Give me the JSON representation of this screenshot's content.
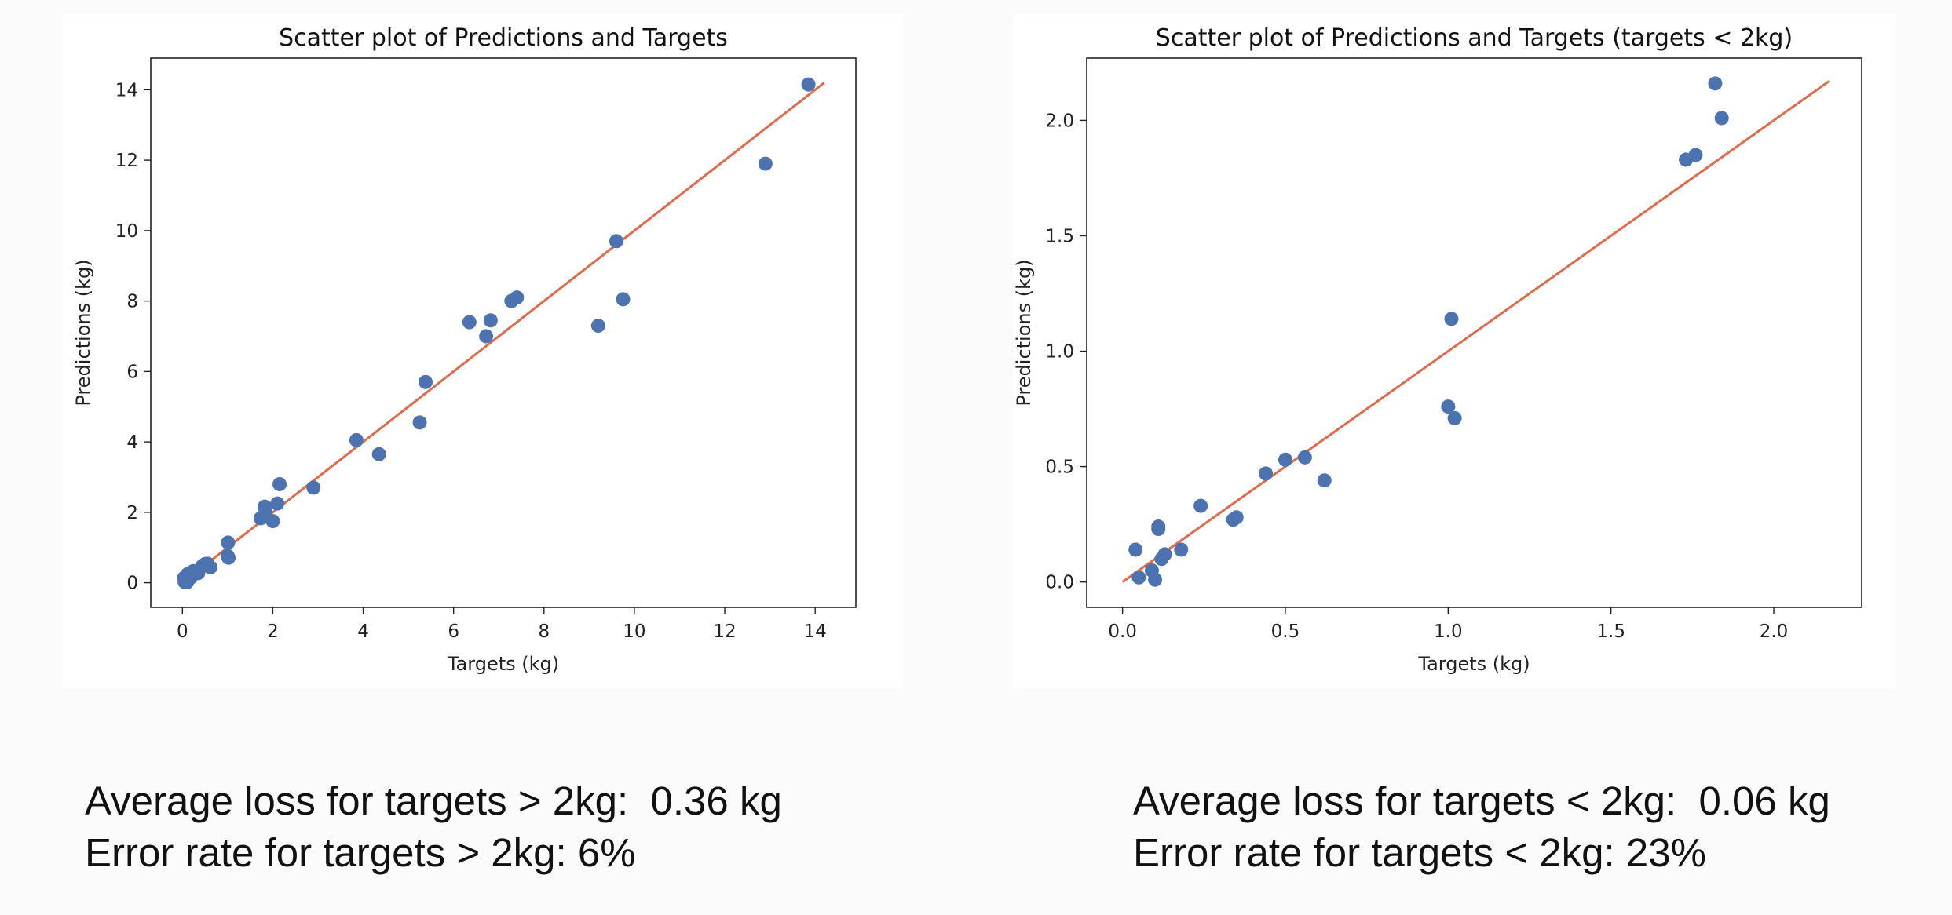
{
  "chart_data": [
    {
      "type": "scatter",
      "title": "Scatter plot of Predictions and Targets",
      "xlabel": "Targets (kg)",
      "ylabel": "Predictions (kg)",
      "xlim": [
        -0.7,
        14.9
      ],
      "ylim": [
        -0.7,
        14.9
      ],
      "xticks": [
        0,
        2,
        4,
        6,
        8,
        10,
        12,
        14
      ],
      "yticks": [
        0,
        2,
        4,
        6,
        8,
        10,
        12,
        14
      ],
      "grid": false,
      "point_color": "#4c72b0",
      "line_color": "#dd6b4d",
      "reference_line": {
        "x": [
          0,
          14.2
        ],
        "y": [
          0,
          14.2
        ]
      },
      "points": [
        [
          0.04,
          0.14
        ],
        [
          0.05,
          0.02
        ],
        [
          0.09,
          0.05
        ],
        [
          0.1,
          0.01
        ],
        [
          0.11,
          0.24
        ],
        [
          0.12,
          0.1
        ],
        [
          0.13,
          0.12
        ],
        [
          0.18,
          0.14
        ],
        [
          0.24,
          0.33
        ],
        [
          0.34,
          0.27
        ],
        [
          0.35,
          0.28
        ],
        [
          0.44,
          0.47
        ],
        [
          0.5,
          0.53
        ],
        [
          0.56,
          0.54
        ],
        [
          0.62,
          0.44
        ],
        [
          1.0,
          0.76
        ],
        [
          1.01,
          1.14
        ],
        [
          1.02,
          0.71
        ],
        [
          1.73,
          1.83
        ],
        [
          1.76,
          1.85
        ],
        [
          1.82,
          2.16
        ],
        [
          1.84,
          2.01
        ],
        [
          2.0,
          1.75
        ],
        [
          2.1,
          2.25
        ],
        [
          2.15,
          2.8
        ],
        [
          2.9,
          2.7
        ],
        [
          3.85,
          4.05
        ],
        [
          4.35,
          3.65
        ],
        [
          5.25,
          4.55
        ],
        [
          5.38,
          5.7
        ],
        [
          6.35,
          7.4
        ],
        [
          6.72,
          7.0
        ],
        [
          6.82,
          7.45
        ],
        [
          7.28,
          8.0
        ],
        [
          7.4,
          8.1
        ],
        [
          9.2,
          7.3
        ],
        [
          9.6,
          9.7
        ],
        [
          9.75,
          8.05
        ],
        [
          12.9,
          11.9
        ],
        [
          13.85,
          14.15
        ]
      ]
    },
    {
      "type": "scatter",
      "title": "Scatter plot of Predictions and Targets (targets < 2kg)",
      "xlabel": "Targets (kg)",
      "ylabel": "Predictions (kg)",
      "xlim": [
        -0.11,
        2.27
      ],
      "ylim": [
        -0.11,
        2.27
      ],
      "xticks": [
        0.0,
        0.5,
        1.0,
        1.5,
        2.0
      ],
      "yticks": [
        0.0,
        0.5,
        1.0,
        1.5,
        2.0
      ],
      "grid": false,
      "point_color": "#4c72b0",
      "line_color": "#dd6b4d",
      "reference_line": {
        "x": [
          0,
          2.17
        ],
        "y": [
          0,
          2.17
        ]
      },
      "points": [
        [
          0.04,
          0.14
        ],
        [
          0.05,
          0.02
        ],
        [
          0.09,
          0.05
        ],
        [
          0.1,
          0.01
        ],
        [
          0.11,
          0.24
        ],
        [
          0.11,
          0.23
        ],
        [
          0.12,
          0.1
        ],
        [
          0.13,
          0.12
        ],
        [
          0.18,
          0.14
        ],
        [
          0.24,
          0.33
        ],
        [
          0.34,
          0.27
        ],
        [
          0.35,
          0.28
        ],
        [
          0.44,
          0.47
        ],
        [
          0.5,
          0.53
        ],
        [
          0.56,
          0.54
        ],
        [
          0.62,
          0.44
        ],
        [
          1.0,
          0.76
        ],
        [
          1.01,
          1.14
        ],
        [
          1.02,
          0.71
        ],
        [
          1.73,
          1.83
        ],
        [
          1.76,
          1.85
        ],
        [
          1.82,
          2.16
        ],
        [
          1.84,
          2.01
        ]
      ]
    }
  ],
  "captions": {
    "left_line1": "Average loss for targets > 2kg:  0.36 kg",
    "left_line2": "Error rate for targets > 2kg: 6%",
    "right_line1": "Average loss for targets < 2kg:  0.06 kg",
    "right_line2": "Error rate for targets < 2kg: 23%"
  }
}
